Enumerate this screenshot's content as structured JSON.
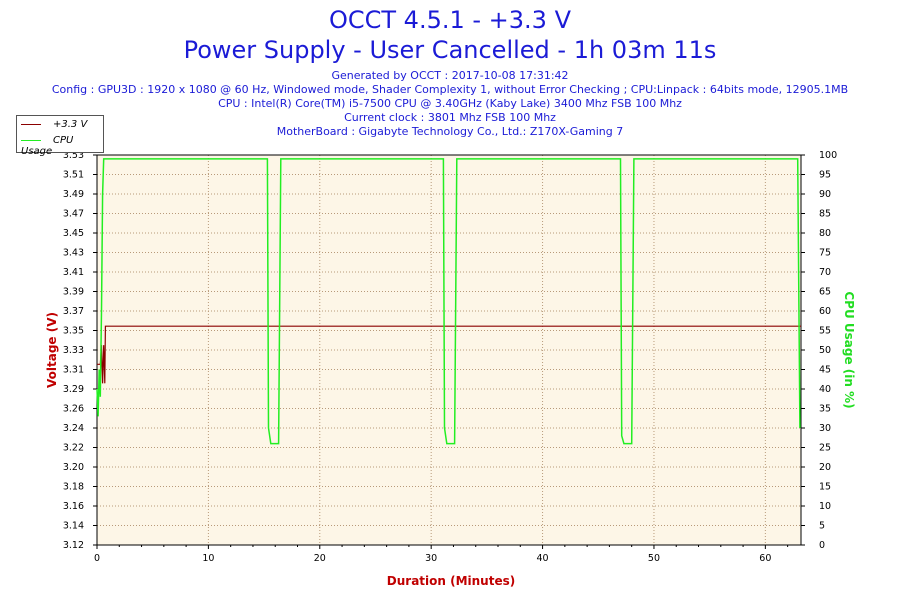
{
  "header": {
    "title_line1": "OCCT 4.5.1 - +3.3 V",
    "title_line2": "Power Supply - User Cancelled - 1h 03m 11s",
    "generated": "Generated by OCCT : 2017-10-08 17:31:42",
    "config": "Config : GPU3D : 1920 x 1080 @ 60 Hz, Windowed mode, Shader Complexity 1, without Error Checking ; CPU:Linpack : 64bits mode, 12905.1MB",
    "cpu": "CPU : Intel(R) Core(TM) i5-7500 CPU @ 3.40GHz (Kaby Lake) 3400 Mhz FSB 100 Mhz",
    "clock": "Current clock : 3801 Mhz FSB 100 Mhz",
    "motherboard": "MotherBoard : Gigabyte Technology Co., Ltd.: Z170X-Gaming 7"
  },
  "legend": {
    "series1": "+3.3 V",
    "series2": "CPU Usage"
  },
  "colors": {
    "voltage": "#8b0000",
    "cpu": "#22ee22",
    "plot_bg": "#fdf6e7",
    "grid": "#b89a7a",
    "title": "#1b1bd6",
    "axis_title": "#c00000"
  },
  "chart_data": {
    "type": "line",
    "xlabel": "Duration (Minutes)",
    "ylabel": "Voltage (V)",
    "y2label": "CPU Usage (in %)",
    "xlim": [
      0,
      63.2
    ],
    "ylim": [
      3.12,
      3.53
    ],
    "y2lim": [
      0,
      100
    ],
    "x_ticks": [
      0,
      10,
      20,
      30,
      40,
      50,
      60
    ],
    "y_ticks": [
      "3.12",
      "3.14",
      "3.16",
      "3.18",
      "3.20",
      "3.22",
      "3.24",
      "3.26",
      "3.29",
      "3.31",
      "3.33",
      "3.35",
      "3.37",
      "3.39",
      "3.41",
      "3.43",
      "3.45",
      "3.47",
      "3.49",
      "3.51",
      "3.53"
    ],
    "y2_ticks": [
      0,
      5,
      10,
      15,
      20,
      25,
      30,
      35,
      40,
      45,
      50,
      55,
      60,
      65,
      70,
      75,
      80,
      85,
      90,
      95,
      100
    ],
    "grid": true,
    "legend_position": "top-left",
    "series": [
      {
        "name": "+3.3 V",
        "axis": "left",
        "x": [
          0,
          0.3,
          0.4,
          0.5,
          0.6,
          0.7,
          0.75,
          0.85,
          63.2
        ],
        "y": [
          3.31,
          3.31,
          3.33,
          3.29,
          3.33,
          3.29,
          3.35,
          3.35,
          3.35
        ]
      },
      {
        "name": "CPU Usage",
        "axis": "right",
        "x": [
          0,
          0.1,
          0.2,
          0.3,
          0.4,
          0.5,
          0.6,
          15.3,
          15.4,
          15.6,
          16.3,
          16.5,
          31.1,
          31.2,
          31.4,
          32.1,
          32.3,
          47.0,
          47.1,
          47.3,
          48.0,
          48.2,
          62.9,
          63.1
        ],
        "y": [
          40,
          33,
          45,
          38,
          60,
          90,
          99,
          99,
          30,
          26,
          26,
          99,
          99,
          30,
          26,
          26,
          99,
          99,
          28,
          26,
          26,
          99,
          99,
          30
        ]
      }
    ]
  }
}
